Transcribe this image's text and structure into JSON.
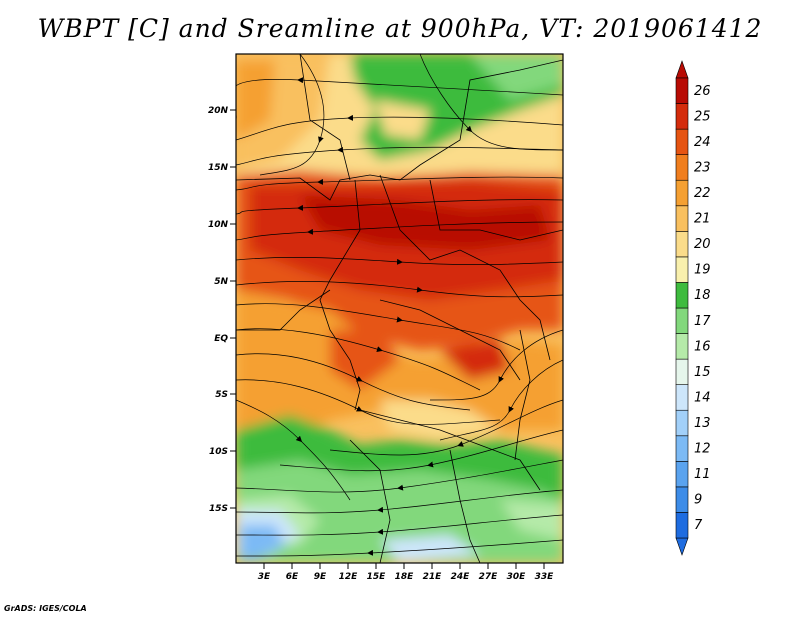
{
  "title": "WBPT [C] and Sreamline at 900hPa, VT: 2019061412",
  "credit": "GrADS: IGES/COLA",
  "map": {
    "lat_labels": [
      "20N",
      "15N",
      "10N",
      "5N",
      "EQ",
      "5S",
      "10S",
      "15S"
    ],
    "lon_labels": [
      "3E",
      "6E",
      "9E",
      "12E",
      "15E",
      "18E",
      "21E",
      "24E",
      "27E",
      "30E",
      "33E"
    ]
  },
  "colorbar": {
    "labels": [
      "7",
      "9",
      "11",
      "12",
      "13",
      "14",
      "15",
      "16",
      "17",
      "18",
      "19",
      "20",
      "21",
      "22",
      "23",
      "24",
      "25",
      "26"
    ],
    "colors": [
      "#1e6ce0",
      "#3d8ce8",
      "#5aa3ef",
      "#7cbaf5",
      "#a2d0f9",
      "#cde6fb",
      "#e6f6ec",
      "#b5eaa9",
      "#82d87c",
      "#3ebb3e",
      "#f9f0ad",
      "#fbdc8a",
      "#f9c05f",
      "#f5a032",
      "#f07e1e",
      "#e65412",
      "#d42c0c",
      "#b80b04"
    ]
  }
}
